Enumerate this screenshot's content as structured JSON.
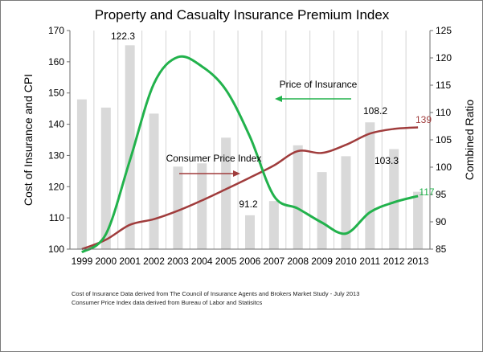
{
  "chart_data": {
    "type": "bar",
    "title": "Property and Casualty Insurance Premium Index",
    "x": [
      1999,
      2000,
      2001,
      2002,
      2003,
      2004,
      2005,
      2006,
      2007,
      2008,
      2009,
      2010,
      2011,
      2012,
      2013
    ],
    "xtick_labels": [
      "1999",
      "2000",
      "2001",
      "2002",
      "2003",
      "2004",
      "2005",
      "2006",
      "2007",
      "2008",
      "2009",
      "2010",
      "2011",
      "2012",
      "2013"
    ],
    "ylabel": "Cost of Insurance and CPI",
    "ylim": [
      100,
      170
    ],
    "yticks": [
      100,
      110,
      120,
      130,
      140,
      150,
      160,
      170
    ],
    "y2label": "Combined Ratio",
    "y2lim": [
      85,
      125
    ],
    "y2ticks": [
      85,
      90,
      95,
      100,
      105,
      110,
      115,
      120,
      125
    ],
    "grid": "vertical",
    "series": [
      {
        "name": "",
        "type": "bar",
        "axis": "right",
        "color": "#d9d9d9",
        "values": [
          112.4,
          110.9,
          122.3,
          109.8,
          100.1,
          100.7,
          105.4,
          91.2,
          93.8,
          104.0,
          99.1,
          102.0,
          108.2,
          103.3,
          95.5
        ]
      },
      {
        "name": "Price of Insurance",
        "type": "line",
        "axis": "left",
        "color": "#22b24c",
        "values": [
          99,
          104.8,
          128.5,
          153,
          161.5,
          158.5,
          151,
          136,
          117,
          113,
          108.5,
          105,
          111.8,
          115,
          117
        ]
      },
      {
        "name": "Consumer Price Index",
        "type": "line",
        "axis": "left",
        "color": "#a03c3c",
        "values": [
          100,
          103,
          107.8,
          109.6,
          112.3,
          115.6,
          119.2,
          122.9,
          126.8,
          131.4,
          130.8,
          133.4,
          137,
          138.5,
          139
        ]
      }
    ],
    "annotations": [
      {
        "text": "122.3",
        "color": "#000000"
      },
      {
        "text": "91.2",
        "color": "#000000"
      },
      {
        "text": "108.2",
        "color": "#000000"
      },
      {
        "text": "103.3",
        "color": "#000000"
      },
      {
        "text": "139",
        "color": "#a03c3c"
      },
      {
        "text": "117",
        "color": "#22b24c"
      }
    ],
    "arrow_labels": [
      "Price of Insurance",
      "Consumer Price Index"
    ]
  },
  "notes": [
    "Cost of Insurance Data derived from The Council of Insurance Agents and Brokers Market Study - July 2013",
    "Consumer Price Index data derived from Bureau of Labor and Statisitcs"
  ]
}
